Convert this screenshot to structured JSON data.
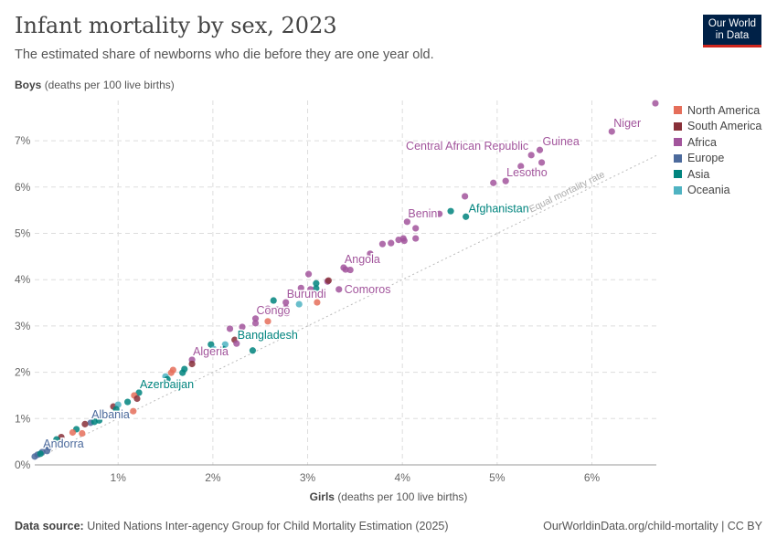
{
  "header": {
    "title": "Infant mortality by sex, 2023",
    "subtitle": "The estimated share of newborns who die before they are one year old.",
    "logo_line1": "Our World",
    "logo_line2": "in Data"
  },
  "footer": {
    "source_label": "Data source:",
    "source": "United Nations Inter-agency Group for Child Mortality Estimation (2025)",
    "link": "OurWorldinData.org/child-mortality | CC BY"
  },
  "chart_data": {
    "type": "scatter",
    "title": "Infant mortality by sex, 2023",
    "ylabel_bold": "Boys",
    "ylabel_rest": "(deaths per 100 live births)",
    "xlabel_bold": "Girls",
    "xlabel_rest": "(deaths per 100 live births)",
    "xlim": [
      0.12,
      6.68
    ],
    "ylim": [
      0,
      7.87
    ],
    "xticks": [
      {
        "v": 1,
        "t": "1%"
      },
      {
        "v": 2,
        "t": "2%"
      },
      {
        "v": 3,
        "t": "3%"
      },
      {
        "v": 4,
        "t": "4%"
      },
      {
        "v": 5,
        "t": "5%"
      },
      {
        "v": 6,
        "t": "6%"
      }
    ],
    "yticks": [
      {
        "v": 0,
        "t": "0%"
      },
      {
        "v": 1,
        "t": "1%"
      },
      {
        "v": 2,
        "t": "2%"
      },
      {
        "v": 3,
        "t": "3%"
      },
      {
        "v": 4,
        "t": "4%"
      },
      {
        "v": 5,
        "t": "5%"
      },
      {
        "v": 6,
        "t": "6%"
      },
      {
        "v": 7,
        "t": "7%"
      }
    ],
    "grid": true,
    "reference_line": {
      "label": "Equal mortality rate",
      "slope": 1
    },
    "legend_position": "top-right",
    "regions": [
      {
        "name": "North America",
        "color": "#e56e5a"
      },
      {
        "name": "South America",
        "color": "#883039"
      },
      {
        "name": "Africa",
        "color": "#a2559c"
      },
      {
        "name": "Europe",
        "color": "#4c6a9c"
      },
      {
        "name": "Asia",
        "color": "#00847e"
      },
      {
        "name": "Oceania",
        "color": "#4fb3c2"
      }
    ],
    "points": [
      {
        "x": 6.67,
        "y": 7.81,
        "r": "Africa"
      },
      {
        "x": 6.21,
        "y": 7.2,
        "r": "Africa",
        "label": "Niger"
      },
      {
        "x": 5.45,
        "y": 6.8,
        "r": "Africa",
        "label": "Guinea"
      },
      {
        "x": 5.36,
        "y": 6.69,
        "r": "Africa",
        "label": "Central African Republic"
      },
      {
        "x": 5.47,
        "y": 6.53,
        "r": "Africa"
      },
      {
        "x": 5.25,
        "y": 6.45,
        "r": "Africa"
      },
      {
        "x": 5.09,
        "y": 6.13,
        "r": "Africa",
        "label": "Lesotho"
      },
      {
        "x": 4.96,
        "y": 6.09,
        "r": "Africa"
      },
      {
        "x": 4.66,
        "y": 5.8,
        "r": "Africa"
      },
      {
        "x": 4.51,
        "y": 5.48,
        "r": "Asia"
      },
      {
        "x": 4.67,
        "y": 5.36,
        "r": "Asia",
        "label": "Afghanistan"
      },
      {
        "x": 4.39,
        "y": 5.42,
        "r": "Africa"
      },
      {
        "x": 4.05,
        "y": 5.25,
        "r": "Africa",
        "label": "Benin"
      },
      {
        "x": 4.14,
        "y": 5.11,
        "r": "Africa"
      },
      {
        "x": 4.14,
        "y": 4.89,
        "r": "Africa"
      },
      {
        "x": 4.01,
        "y": 4.89,
        "r": "Africa"
      },
      {
        "x": 3.96,
        "y": 4.86,
        "r": "Africa"
      },
      {
        "x": 4.02,
        "y": 4.84,
        "r": "Africa"
      },
      {
        "x": 3.88,
        "y": 4.79,
        "r": "Africa"
      },
      {
        "x": 3.79,
        "y": 4.77,
        "r": "Africa"
      },
      {
        "x": 3.66,
        "y": 4.56,
        "r": "Africa"
      },
      {
        "x": 3.38,
        "y": 4.26,
        "r": "Africa",
        "label": "Angola"
      },
      {
        "x": 3.4,
        "y": 4.22,
        "r": "Africa"
      },
      {
        "x": 3.45,
        "y": 4.21,
        "r": "Africa"
      },
      {
        "x": 3.01,
        "y": 4.12,
        "r": "Africa"
      },
      {
        "x": 3.21,
        "y": 3.96,
        "r": "Africa"
      },
      {
        "x": 3.22,
        "y": 3.98,
        "r": "South America"
      },
      {
        "x": 3.09,
        "y": 3.92,
        "r": "Asia"
      },
      {
        "x": 3.09,
        "y": 3.81,
        "r": "Asia"
      },
      {
        "x": 3.03,
        "y": 3.79,
        "r": "Africa"
      },
      {
        "x": 3.33,
        "y": 3.79,
        "r": "Africa",
        "label": "Comoros"
      },
      {
        "x": 2.93,
        "y": 3.82,
        "r": "Africa"
      },
      {
        "x": 2.77,
        "y": 3.51,
        "r": "Africa",
        "label": "Burundi"
      },
      {
        "x": 2.91,
        "y": 3.47,
        "r": "Oceania"
      },
      {
        "x": 3.1,
        "y": 3.51,
        "r": "North America"
      },
      {
        "x": 2.64,
        "y": 3.55,
        "r": "Asia"
      },
      {
        "x": 2.58,
        "y": 3.37,
        "r": "Africa"
      },
      {
        "x": 2.68,
        "y": 3.35,
        "r": "Africa"
      },
      {
        "x": 2.77,
        "y": 3.39,
        "r": "Africa"
      },
      {
        "x": 2.78,
        "y": 3.28,
        "r": "Africa"
      },
      {
        "x": 2.45,
        "y": 3.16,
        "r": "Africa",
        "label": "Congo"
      },
      {
        "x": 2.45,
        "y": 3.06,
        "r": "Africa"
      },
      {
        "x": 2.58,
        "y": 3.1,
        "r": "North America"
      },
      {
        "x": 2.18,
        "y": 2.94,
        "r": "Africa"
      },
      {
        "x": 2.31,
        "y": 2.98,
        "r": "Africa"
      },
      {
        "x": 2.23,
        "y": 2.7,
        "r": "South America"
      },
      {
        "x": 2.25,
        "y": 2.62,
        "r": "Africa",
        "label": "Bangladesh",
        "labelRegion": "Asia"
      },
      {
        "x": 1.98,
        "y": 2.6,
        "r": "Asia"
      },
      {
        "x": 2.13,
        "y": 2.6,
        "r": "Oceania"
      },
      {
        "x": 2.11,
        "y": 2.5,
        "r": "Asia"
      },
      {
        "x": 2.01,
        "y": 2.5,
        "r": "Oceania"
      },
      {
        "x": 1.97,
        "y": 2.46,
        "r": "Asia"
      },
      {
        "x": 2.42,
        "y": 2.47,
        "r": "Asia"
      },
      {
        "x": 1.78,
        "y": 2.27,
        "r": "Africa",
        "label": "Algeria"
      },
      {
        "x": 1.78,
        "y": 2.18,
        "r": "South America"
      },
      {
        "x": 1.7,
        "y": 2.07,
        "r": "Asia"
      },
      {
        "x": 1.68,
        "y": 1.99,
        "r": "Asia"
      },
      {
        "x": 1.58,
        "y": 2.05,
        "r": "North America"
      },
      {
        "x": 1.56,
        "y": 1.99,
        "r": "North America"
      },
      {
        "x": 1.5,
        "y": 1.91,
        "r": "Oceania"
      },
      {
        "x": 1.52,
        "y": 1.85,
        "r": "Asia"
      },
      {
        "x": 1.46,
        "y": 1.72,
        "r": "North America"
      },
      {
        "x": 1.33,
        "y": 1.7,
        "r": "South America"
      },
      {
        "x": 1.38,
        "y": 1.7,
        "r": "Africa"
      },
      {
        "x": 1.22,
        "y": 1.56,
        "r": "Asia",
        "label": "Azerbaijan"
      },
      {
        "x": 1.17,
        "y": 1.5,
        "r": "North America"
      },
      {
        "x": 1.2,
        "y": 1.43,
        "r": "South America"
      },
      {
        "x": 1.1,
        "y": 1.36,
        "r": "Asia"
      },
      {
        "x": 1.16,
        "y": 1.16,
        "r": "North America"
      },
      {
        "x": 0.95,
        "y": 1.26,
        "r": "South America"
      },
      {
        "x": 1.0,
        "y": 1.3,
        "r": "Oceania"
      },
      {
        "x": 0.98,
        "y": 1.2,
        "r": "Asia"
      },
      {
        "x": 0.71,
        "y": 0.91,
        "r": "Europe",
        "label": "Albania"
      },
      {
        "x": 0.75,
        "y": 0.93,
        "r": "Asia"
      },
      {
        "x": 0.8,
        "y": 0.96,
        "r": "Asia"
      },
      {
        "x": 0.65,
        "y": 0.88,
        "r": "South America"
      },
      {
        "x": 0.56,
        "y": 0.77,
        "r": "Asia"
      },
      {
        "x": 0.62,
        "y": 0.68,
        "r": "North America"
      },
      {
        "x": 0.52,
        "y": 0.7,
        "r": "North America"
      },
      {
        "x": 0.4,
        "y": 0.6,
        "r": "South America"
      },
      {
        "x": 0.35,
        "y": 0.55,
        "r": "Asia"
      },
      {
        "x": 0.27,
        "y": 0.38,
        "r": "Europe"
      },
      {
        "x": 0.2,
        "y": 0.28,
        "r": "Europe",
        "label": "Andorra"
      },
      {
        "x": 0.15,
        "y": 0.22,
        "r": "Europe"
      },
      {
        "x": 0.12,
        "y": 0.18,
        "r": "Europe"
      },
      {
        "x": 0.18,
        "y": 0.24,
        "r": "Asia"
      },
      {
        "x": 0.25,
        "y": 0.3,
        "r": "Europe"
      }
    ]
  }
}
